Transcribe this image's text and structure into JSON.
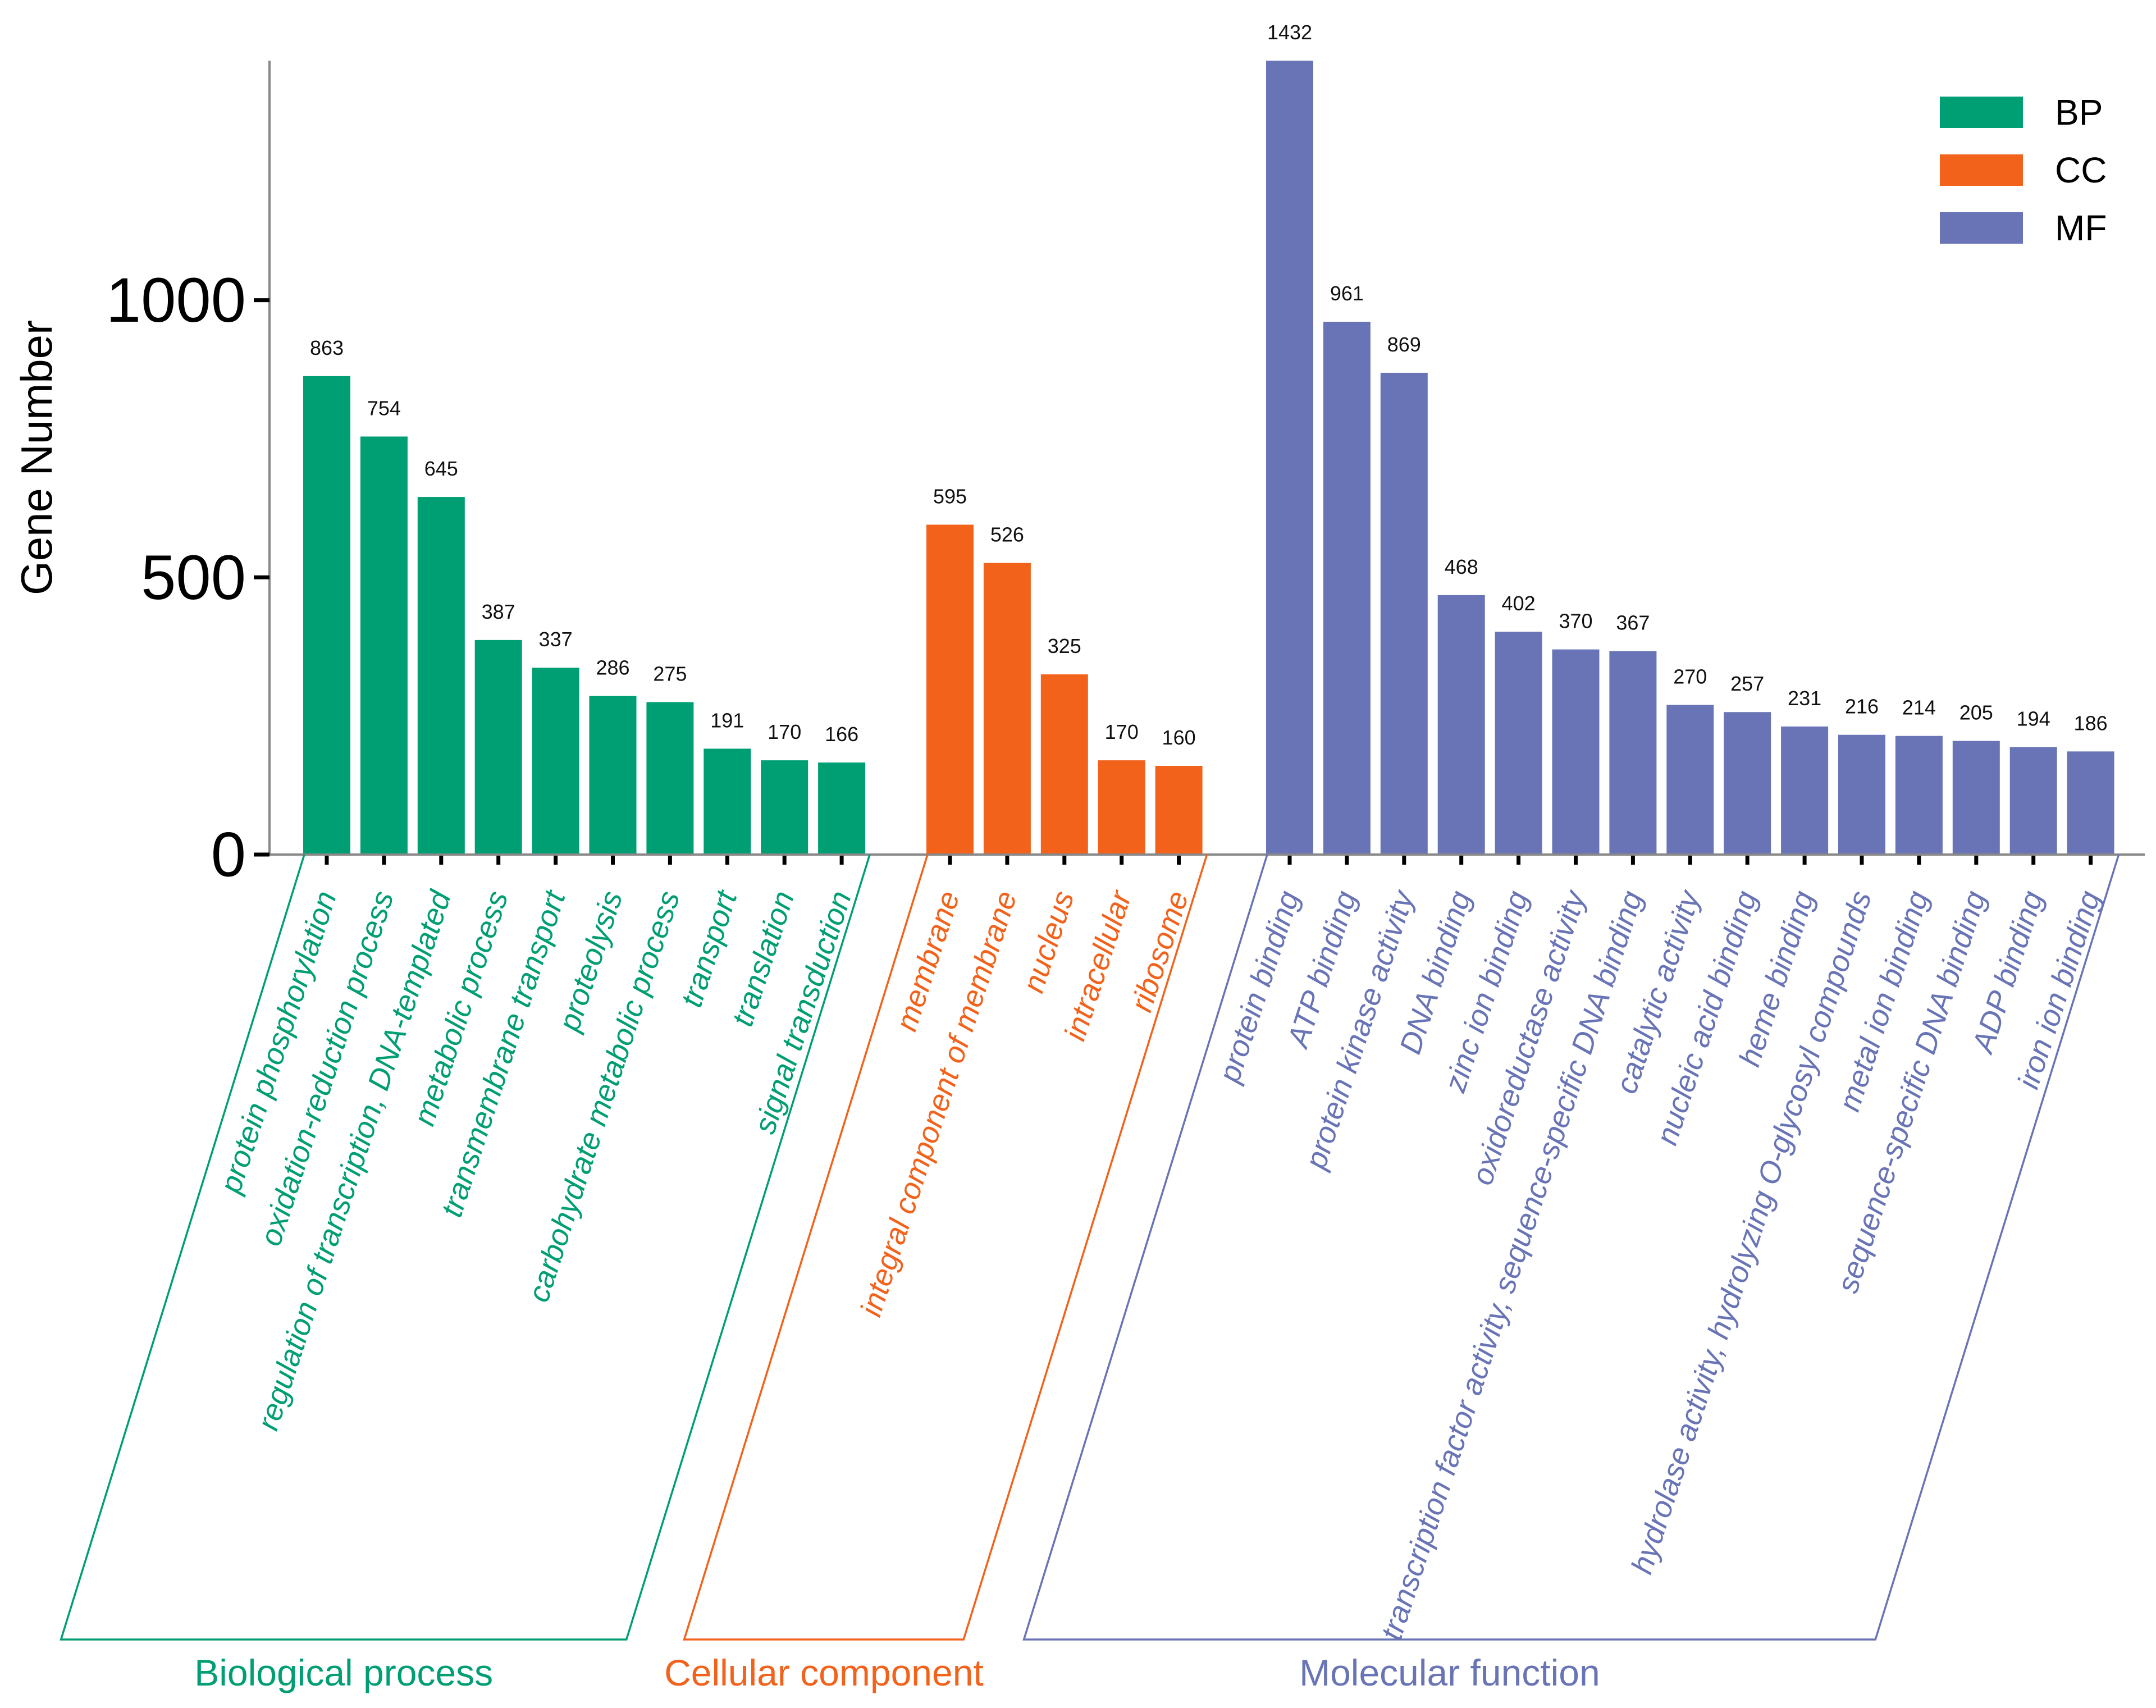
{
  "chart_data": {
    "type": "bar",
    "title": "",
    "xlabel": "",
    "ylabel": "Gene Number",
    "ylim": [
      0,
      1432
    ],
    "yticks": [
      0,
      500,
      1000
    ],
    "grid": false,
    "legend_position": "top-right",
    "colors": {
      "BP": "#009e73",
      "CC": "#f2621b",
      "MF": "#6874b5"
    },
    "legend": [
      {
        "key": "BP",
        "label": "BP"
      },
      {
        "key": "CC",
        "label": "CC"
      },
      {
        "key": "MF",
        "label": "MF"
      }
    ],
    "groups": [
      {
        "key": "BP",
        "label": "Biological process",
        "categories": [
          "protein phosphorylation",
          "oxidation-reduction process",
          "regulation of transcription, DNA-templated",
          "metabolic process",
          "transmembrane transport",
          "proteolysis",
          "carbohydrate metabolic process",
          "transport",
          "translation",
          "signal transduction"
        ],
        "values": [
          863,
          754,
          645,
          387,
          337,
          286,
          275,
          191,
          170,
          166
        ]
      },
      {
        "key": "CC",
        "label": "Cellular component",
        "categories": [
          "membrane",
          "integral component of membrane",
          "nucleus",
          "intracellular",
          "ribosome"
        ],
        "values": [
          595,
          526,
          325,
          170,
          160
        ]
      },
      {
        "key": "MF",
        "label": "Molecular function",
        "categories": [
          "protein binding",
          "ATP binding",
          "protein kinase activity",
          "DNA binding",
          "zinc ion binding",
          "oxidoreductase activity",
          "transcription factor activity, sequence-specific DNA binding",
          "catalytic activity",
          "nucleic acid binding",
          "heme binding",
          "hydrolase activity, hydrolyzing O-glycosyl compounds",
          "metal ion binding",
          "sequence-specific DNA binding",
          "ADP binding",
          "iron ion binding"
        ],
        "values": [
          1432,
          961,
          869,
          468,
          402,
          370,
          367,
          270,
          257,
          231,
          216,
          214,
          205,
          194,
          186
        ]
      }
    ]
  }
}
